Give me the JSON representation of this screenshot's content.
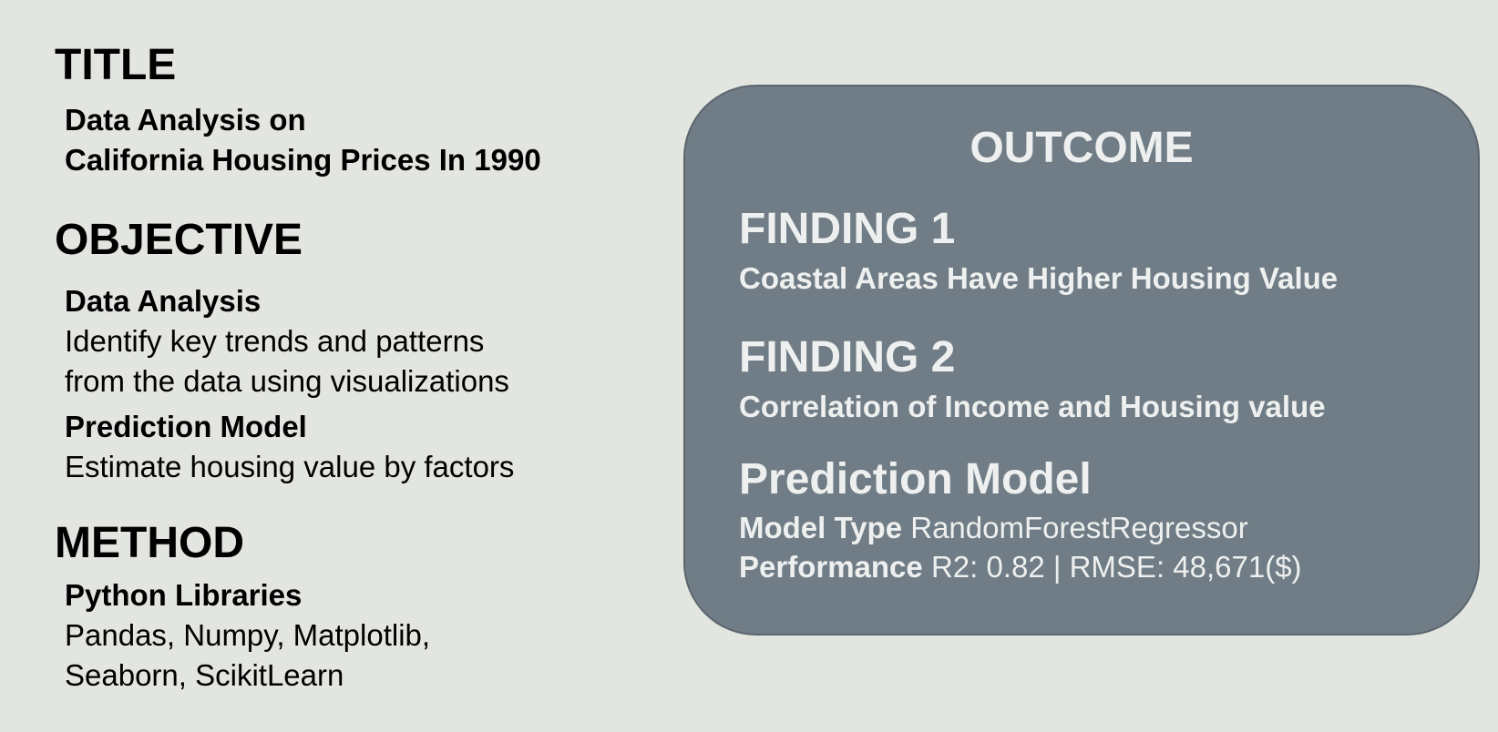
{
  "left": {
    "title": {
      "heading": "TITLE",
      "line1": "Data Analysis on",
      "line2": "California Housing Prices In 1990"
    },
    "objective": {
      "heading": "OBJECTIVE",
      "item1_title": "Data Analysis",
      "item1_line1": "Identify key trends and patterns",
      "item1_line2": "from the data using visualizations",
      "item2_title": "Prediction Model",
      "item2_line1": "Estimate housing value by factors"
    },
    "method": {
      "heading": "METHOD",
      "item_title": "Python Libraries",
      "item_line1": "Pandas, Numpy, Matplotlib,",
      "item_line2": "Seaborn, ScikitLearn"
    }
  },
  "outcome": {
    "heading": "OUTCOME",
    "finding1_heading": "FINDING 1",
    "finding1_text": "Coastal Areas Have Higher Housing Value",
    "finding2_heading": "FINDING 2",
    "finding2_text": "Correlation of Income and Housing value",
    "model_heading": "Prediction Model",
    "model_type_label": "Model Type",
    "model_type_value": "RandomForestRegressor",
    "performance_label": "Performance",
    "performance_value": "R2: 0.82 | RMSE: 48,671($)"
  },
  "colors": {
    "background": "#e3e5e0",
    "card": "#707d86",
    "card_text": "#eef0ef"
  }
}
